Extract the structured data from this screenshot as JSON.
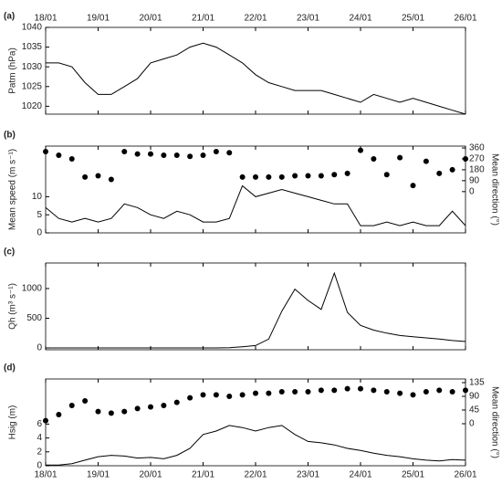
{
  "chart_data": [
    {
      "type": "line",
      "panel_label": "(a)",
      "ylabel": "Patm (hPa)",
      "x": [
        0,
        0.25,
        0.5,
        0.75,
        1,
        1.25,
        1.5,
        1.75,
        2,
        2.25,
        2.5,
        2.75,
        3,
        3.25,
        3.5,
        3.75,
        4,
        4.25,
        4.5,
        4.75,
        5,
        5.25,
        5.5,
        5.75,
        6,
        6.25,
        6.5,
        6.75,
        7,
        7.25,
        7.5,
        7.75,
        8
      ],
      "xlim": [
        0,
        8
      ],
      "xticks": [
        {
          "value": 0,
          "label": "18/01"
        },
        {
          "value": 1,
          "label": "19/01"
        },
        {
          "value": 2,
          "label": "20/01"
        },
        {
          "value": 3,
          "label": "21/01"
        },
        {
          "value": 4,
          "label": "22/01"
        },
        {
          "value": 5,
          "label": "23/01"
        },
        {
          "value": 6,
          "label": "24/01"
        },
        {
          "value": 7,
          "label": "25/01"
        },
        {
          "value": 8,
          "label": "26/01"
        }
      ],
      "xtick_side": "top",
      "ylim": [
        1018,
        1040
      ],
      "yticks": [
        1020,
        1025,
        1030,
        1035,
        1040
      ],
      "series": [
        {
          "type": "line",
          "color": "#000000",
          "values": [
            1031,
            1031,
            1030,
            1026,
            1023,
            1023,
            1025,
            1027,
            1031,
            1032,
            1033,
            1035,
            1036,
            1035,
            1033,
            1031,
            1028,
            1026,
            1025,
            1024,
            1024,
            1024,
            1023,
            1022,
            1021,
            1023,
            1022,
            1021,
            1022,
            1021,
            1020,
            1019,
            1018
          ]
        }
      ]
    },
    {
      "type": "line",
      "panel_label": "(b)",
      "ylabel": "Mean speed (m s⁻¹)",
      "y2label": "Mean direction (°)",
      "x": [
        0,
        0.25,
        0.5,
        0.75,
        1,
        1.25,
        1.5,
        1.75,
        2,
        2.25,
        2.5,
        2.75,
        3,
        3.25,
        3.5,
        3.75,
        4,
        4.25,
        4.5,
        4.75,
        5,
        5.25,
        5.5,
        5.75,
        6,
        6.25,
        6.5,
        6.75,
        7,
        7.25,
        7.5,
        7.75,
        8
      ],
      "xlim": [
        0,
        8
      ],
      "xticks": [
        0,
        1,
        2,
        3,
        4,
        5,
        6,
        7,
        8
      ],
      "ylim": [
        0,
        24
      ],
      "yticks": [
        0,
        5,
        10
      ],
      "y2lim": [
        -340,
        375
      ],
      "y2ticks": [
        0,
        90,
        180,
        270,
        360
      ],
      "series": [
        {
          "type": "line",
          "color": "#000000",
          "values": [
            7,
            4,
            3,
            4,
            3,
            4,
            8,
            7,
            5,
            4,
            6,
            5,
            3,
            3,
            4,
            13,
            10,
            11,
            12,
            11,
            10,
            9,
            8,
            8,
            2,
            2,
            3,
            2,
            3,
            2,
            2,
            6,
            2
          ]
        },
        {
          "type": "scatter",
          "axis": "y2",
          "color": "#000000",
          "values": [
            330,
            300,
            270,
            120,
            130,
            100,
            330,
            310,
            310,
            300,
            300,
            290,
            300,
            330,
            320,
            120,
            120,
            120,
            120,
            130,
            130,
            130,
            140,
            150,
            340,
            270,
            140,
            280,
            50,
            250,
            150,
            180,
            270
          ]
        }
      ]
    },
    {
      "type": "line",
      "panel_label": "(c)",
      "ylabel": "Qh (m³ s⁻¹)",
      "x": [
        0,
        0.25,
        0.5,
        0.75,
        1,
        1.25,
        1.5,
        1.75,
        2,
        2.25,
        2.5,
        2.75,
        3,
        3.25,
        3.5,
        3.75,
        4,
        4.25,
        4.5,
        4.75,
        5,
        5.25,
        5.5,
        5.75,
        6,
        6.25,
        6.5,
        6.75,
        7,
        7.25,
        7.5,
        7.75,
        8
      ],
      "xlim": [
        0,
        8
      ],
      "xticks": [
        0,
        1,
        2,
        3,
        4,
        5,
        6,
        7,
        8
      ],
      "ylim": [
        -30,
        1430
      ],
      "yticks": [
        0,
        500,
        1000
      ],
      "series": [
        {
          "type": "line",
          "color": "#000000",
          "values": [
            0,
            0,
            0,
            0,
            0,
            0,
            0,
            0,
            0,
            0,
            0,
            0,
            0,
            0,
            5,
            20,
            40,
            150,
            620,
            990,
            800,
            650,
            1260,
            600,
            380,
            300,
            250,
            210,
            190,
            170,
            150,
            125,
            110
          ]
        }
      ]
    },
    {
      "type": "line",
      "panel_label": "(d)",
      "ylabel": "Hsig (m)",
      "y2label": "Mean direction (°)",
      "x": [
        0,
        0.25,
        0.5,
        0.75,
        1,
        1.25,
        1.5,
        1.75,
        2,
        2.25,
        2.5,
        2.75,
        3,
        3.25,
        3.5,
        3.75,
        4,
        4.25,
        4.5,
        4.75,
        5,
        5.25,
        5.5,
        5.75,
        6,
        6.25,
        6.5,
        6.75,
        7,
        7.25,
        7.5,
        7.75,
        8
      ],
      "xlim": [
        0,
        8
      ],
      "xticks": [
        {
          "value": 0,
          "label": "18/01"
        },
        {
          "value": 1,
          "label": "19/01"
        },
        {
          "value": 2,
          "label": "20/01"
        },
        {
          "value": 3,
          "label": "21/01"
        },
        {
          "value": 4,
          "label": "22/01"
        },
        {
          "value": 5,
          "label": "23/01"
        },
        {
          "value": 6,
          "label": "24/01"
        },
        {
          "value": 7,
          "label": "25/01"
        },
        {
          "value": 8,
          "label": "26/01"
        }
      ],
      "xtick_side": "bottom",
      "ylim": [
        0,
        12.5
      ],
      "yticks": [
        0,
        2,
        4,
        6
      ],
      "y2lim": [
        -138,
        147
      ],
      "y2ticks": [
        0,
        45,
        90,
        135
      ],
      "series": [
        {
          "type": "line",
          "color": "#000000",
          "values": [
            0.1,
            0.1,
            0.3,
            0.8,
            1.3,
            1.5,
            1.4,
            1.1,
            1.2,
            1.0,
            1.5,
            2.5,
            4.5,
            5,
            5.8,
            5.5,
            5,
            5.5,
            5.8,
            4.5,
            3.5,
            3.3,
            3,
            2.5,
            2.2,
            1.8,
            1.5,
            1.3,
            1,
            0.8,
            0.7,
            0.9,
            0.8
          ]
        },
        {
          "type": "scatter",
          "axis": "y2",
          "color": "#000000",
          "values": [
            10,
            30,
            60,
            75,
            40,
            35,
            40,
            50,
            55,
            60,
            70,
            85,
            95,
            95,
            90,
            95,
            100,
            100,
            105,
            105,
            105,
            110,
            110,
            115,
            115,
            110,
            105,
            100,
            95,
            105,
            110,
            105,
            110
          ]
        }
      ]
    }
  ]
}
